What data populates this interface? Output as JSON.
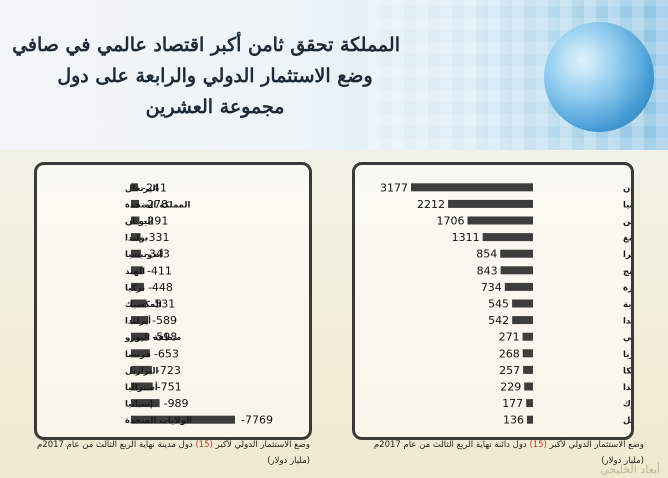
{
  "title_lines": [
    "المملكة تحقق ثامن أكبر اقتصاد عالمي في صافي",
    "وضع الاستثمار الدولي والرابعة على دول",
    "مجموعة العشرين"
  ],
  "chart_data": [
    {
      "type": "bar",
      "orientation": "horizontal",
      "title": "",
      "categories": [
        "اليابان",
        "ألمانيا",
        "الصين",
        "هونغ كونغ",
        "سويسرا",
        "النرويج",
        "سنغافورة",
        "المملكة العربية السعودية",
        "هولندا",
        "الاتحاد الروسي",
        "كوريا",
        "بلجيكا",
        "كندا",
        "الدنمارك",
        "إسرائيل"
      ],
      "values": [
        3177,
        2212,
        1706,
        1311,
        854,
        843,
        734,
        545,
        542,
        271,
        268,
        257,
        229,
        177,
        136
      ],
      "value_labels": [
        "3177",
        "2212",
        "1706",
        "1311",
        "854",
        "843",
        "734",
        "545",
        "542",
        "271",
        "268",
        "257",
        "229",
        "177",
        "136"
      ],
      "caption": {
        "before": "وضع الاستثمار الدولي لأكبر",
        "num": "(15)",
        "after": "دول دائنة نهاية الربع الثالث من عام 2017م",
        "unit": "(مليار دولار)"
      },
      "bar_color": "#3d3d3d"
    },
    {
      "type": "bar",
      "orientation": "horizontal",
      "title": "",
      "categories": [
        "البرتغال",
        "المملكة المتحدة",
        "اليونان",
        "بولندا",
        "أندونيسيا",
        "الهند",
        "تركيا",
        "المكسيك",
        "أيرلندا",
        "منطقة اليورو",
        "فرنسا",
        "البرازيل",
        "أستراليا",
        "إسبانيا",
        "الولايات المتحدة"
      ],
      "values": [
        -241,
        -278,
        -291,
        -331,
        -343,
        -411,
        -448,
        -531,
        -589,
        -598,
        -653,
        -723,
        -751,
        -989,
        -7769
      ],
      "value_labels": [
        "-241",
        "-278",
        "-291",
        "-331",
        "-343",
        "-411",
        "-448",
        "-531",
        "-589",
        "-598",
        "-653",
        "-723",
        "-751",
        "-989",
        "-7769"
      ],
      "caption": {
        "before": "وضع الاستثمار الدولي لأكبر",
        "num": "(15)",
        "after": "دول مدينة نهاية الربع الثالث من عام 2017م",
        "unit": "(مليار دولار)"
      },
      "bar_color": "#3d3d3d"
    }
  ],
  "watermark": "أبعاد الخليجي",
  "colors": {
    "accent_red": "#c0392b",
    "bar": "#3d3d3d",
    "frame": "#3a3a3a"
  }
}
